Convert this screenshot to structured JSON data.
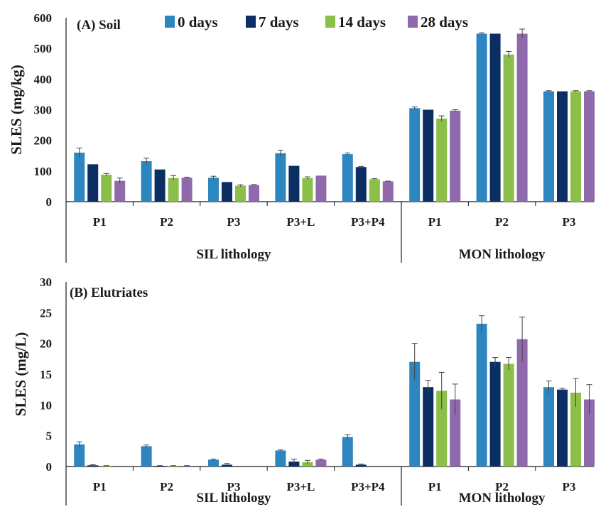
{
  "chart_data": [
    {
      "type": "bar",
      "title": "(A) Soil",
      "xlabel": "",
      "ylabel": "SLES (mg/kg)",
      "ylim": [
        0,
        600
      ],
      "yticks": [
        "0",
        "100",
        "200",
        "300",
        "400",
        "500",
        "600"
      ],
      "categories": [
        "P1",
        "P2",
        "P3",
        "P3+L",
        "P3+P4",
        "P1",
        "P2",
        "P3"
      ],
      "groups": [
        {
          "label": "SIL lithology",
          "count": 5
        },
        {
          "label": "MON lithology",
          "count": 3
        }
      ],
      "series": [
        {
          "name": "0 days",
          "values": [
            160,
            132,
            78,
            158,
            155,
            305,
            548,
            360
          ],
          "errors": [
            15,
            10,
            5,
            10,
            4,
            4,
            3,
            2
          ]
        },
        {
          "name": "7 days",
          "values": [
            122,
            105,
            64,
            117,
            113,
            300,
            548,
            360
          ],
          "errors": [
            0,
            0,
            0,
            0,
            2,
            0,
            0,
            0
          ]
        },
        {
          "name": "14 days",
          "values": [
            88,
            77,
            52,
            77,
            73,
            271,
            480,
            360
          ],
          "errors": [
            4,
            8,
            3,
            4,
            2,
            9,
            10,
            2
          ]
        },
        {
          "name": "28 days",
          "values": [
            68,
            78,
            54,
            85,
            66,
            297,
            548,
            360
          ],
          "errors": [
            9,
            2,
            2,
            0,
            1,
            3,
            15,
            2
          ]
        }
      ],
      "legend": "top"
    },
    {
      "type": "bar",
      "title": "(B) Elutriates",
      "xlabel": "",
      "ylabel": "SLES (mg/L)",
      "ylim": [
        0,
        30
      ],
      "yticks": [
        "0",
        "5",
        "10",
        "15",
        "20",
        "25",
        "30"
      ],
      "categories": [
        "P1",
        "P2",
        "P3",
        "P3+L",
        "P3+P4",
        "P1",
        "P2",
        "P3"
      ],
      "groups": [
        {
          "label": "SIL lithology",
          "count": 5
        },
        {
          "label": "MON lithology",
          "count": 3
        }
      ],
      "series": [
        {
          "name": "0 days",
          "values": [
            3.6,
            3.3,
            1.1,
            2.6,
            4.8,
            17.0,
            23.2,
            12.9
          ],
          "errors": [
            0.4,
            0.2,
            0.1,
            0.1,
            0.4,
            3.0,
            1.3,
            1.0
          ]
        },
        {
          "name": "7 days",
          "values": [
            0.2,
            0.1,
            0.3,
            0.8,
            0.3,
            12.9,
            17.0,
            12.5
          ],
          "errors": [
            0.1,
            0.05,
            0.2,
            0.4,
            0.1,
            1.1,
            0.7,
            0.2
          ]
        },
        {
          "name": "14 days",
          "values": [
            0.1,
            0.1,
            0.0,
            0.7,
            0.0,
            12.3,
            16.7,
            12.0
          ],
          "errors": [
            0.05,
            0.05,
            0.0,
            0.3,
            0.0,
            3.0,
            1.0,
            2.3
          ]
        },
        {
          "name": "28 days",
          "values": [
            0.0,
            0.1,
            0.0,
            1.1,
            0.0,
            10.9,
            20.7,
            10.9
          ],
          "errors": [
            0.0,
            0.05,
            0.0,
            0.1,
            0.0,
            2.5,
            3.6,
            2.4
          ]
        }
      ]
    }
  ],
  "colors": {
    "0 days": "#2e86c1",
    "7 days": "#0b2f63",
    "14 days": "#8bbf4a",
    "28 days": "#8e6aad",
    "axis": "#1a1a1a",
    "error": "#444444"
  }
}
